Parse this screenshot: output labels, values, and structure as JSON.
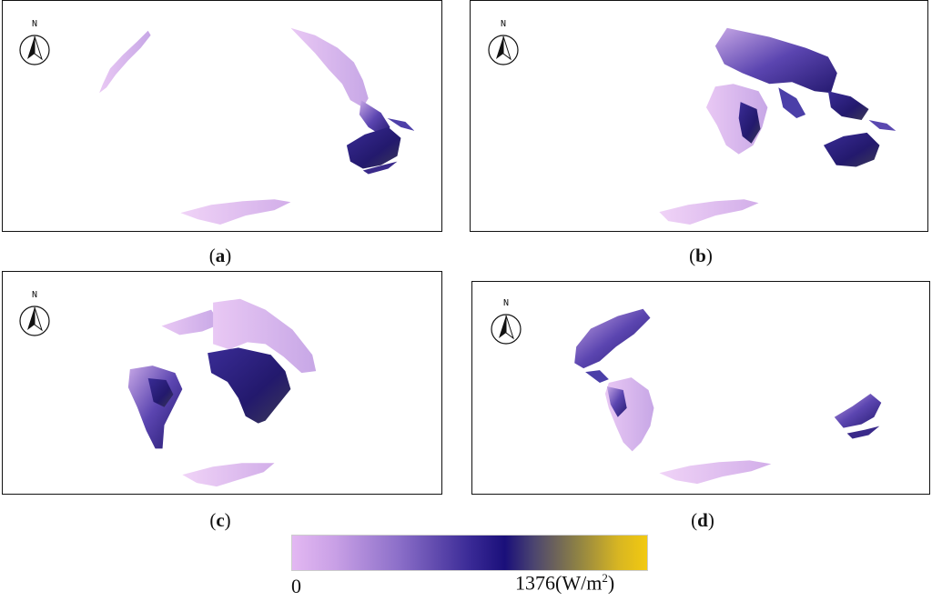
{
  "north_label": "N",
  "panels": [
    {
      "id": "a",
      "caption_open": "(",
      "caption_letter": "a",
      "caption_close": ")"
    },
    {
      "id": "b",
      "caption_open": "(",
      "caption_letter": "b",
      "caption_close": ")"
    },
    {
      "id": "c",
      "caption_open": "(",
      "caption_letter": "c",
      "caption_close": ")"
    },
    {
      "id": "d",
      "caption_open": "(",
      "caption_letter": "d",
      "caption_close": ")"
    }
  ],
  "legend": {
    "min_label": "0",
    "max_label": "1376(W/m",
    "max_label_sup": "2",
    "max_label_end": ")",
    "colors": [
      "#e3b8f2",
      "#8c6fc9",
      "#1a0f7a",
      "#8c8046",
      "#f2c910"
    ]
  }
}
